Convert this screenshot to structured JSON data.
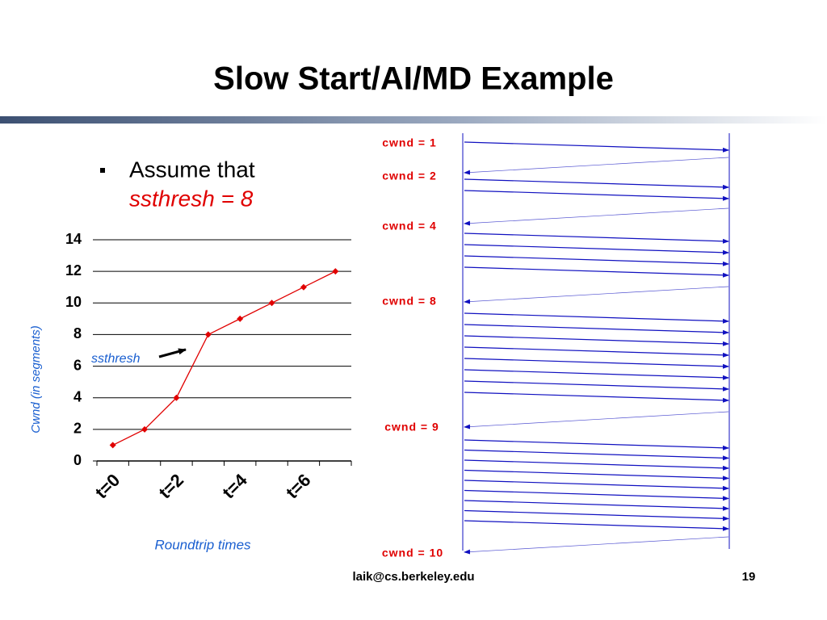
{
  "slide": {
    "title": "Slow Start/AI/MD Example",
    "bullet": [
      "Assume that",
      "ssthresh = 8"
    ]
  },
  "chart_data": {
    "type": "line",
    "categories": [
      "t=0",
      null,
      "t=2",
      null,
      "t=4",
      null,
      "t=6",
      null
    ],
    "values": [
      1,
      2,
      4,
      8,
      9,
      10,
      11,
      12
    ],
    "color": "#e00000",
    "ylim": [
      0,
      14
    ],
    "yticks": [
      0,
      2,
      4,
      6,
      8,
      10,
      12,
      14
    ],
    "grid": true,
    "y_label": "Cwnd (in segments)",
    "x_label": "Roundtrip times",
    "annotation": "ssthresh"
  },
  "diagram": {
    "labels": [
      "cwnd = 1",
      "cwnd = 2",
      "cwnd = 4",
      "cwnd = 8",
      "cwnd = 9",
      "cwnd = 10"
    ]
  },
  "footer": {
    "email": "laik@cs.berkeley.edu",
    "page": "19"
  }
}
